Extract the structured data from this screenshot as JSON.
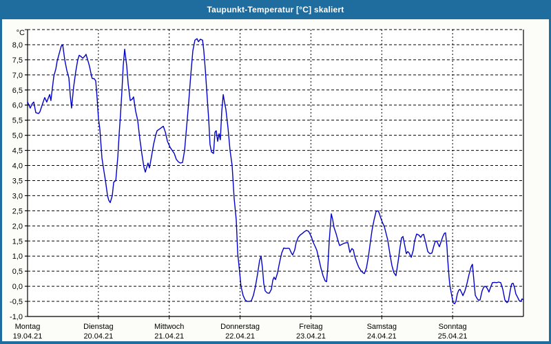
{
  "window": {
    "title": "Taupunkt-Temperatur [°C] skaliert"
  },
  "colors": {
    "titlebar": "#1f6c9f",
    "frame": "#1f6c9f",
    "page_bg": "#fcfdf8",
    "plot_bg": "#ffffff",
    "grid": "#000000",
    "text": "#000000",
    "line": "#0000c8"
  },
  "chart_data": {
    "type": "line",
    "title": "Taupunkt-Temperatur [°C] skaliert",
    "ylabel": "°C",
    "xlabel": "",
    "ylim": [
      -1.0,
      8.5
    ],
    "x_range_hours": [
      0,
      168
    ],
    "grid": true,
    "legend": "none",
    "y_grid_values": [
      8.5,
      8.0,
      7.5,
      7.0,
      6.5,
      6.0,
      5.5,
      5.0,
      4.5,
      4.0,
      3.5,
      3.0,
      2.5,
      2.0,
      1.5,
      1.0,
      0.5,
      0.0,
      -0.5
    ],
    "y_ticks": [
      {
        "v": 8.0,
        "label": "8,0"
      },
      {
        "v": 7.5,
        "label": "7,5"
      },
      {
        "v": 7.0,
        "label": "7,0"
      },
      {
        "v": 6.5,
        "label": "6,5"
      },
      {
        "v": 6.0,
        "label": "6,0"
      },
      {
        "v": 5.5,
        "label": "5,5"
      },
      {
        "v": 5.0,
        "label": "5,0"
      },
      {
        "v": 4.5,
        "label": "4,5"
      },
      {
        "v": 4.0,
        "label": "4,0"
      },
      {
        "v": 3.5,
        "label": "3,5"
      },
      {
        "v": 3.0,
        "label": "3,0"
      },
      {
        "v": 2.5,
        "label": "2,5"
      },
      {
        "v": 2.0,
        "label": "2,0"
      },
      {
        "v": 1.5,
        "label": "1,5"
      },
      {
        "v": 1.0,
        "label": "1,0"
      },
      {
        "v": 0.5,
        "label": "0,5"
      },
      {
        "v": 0.0,
        "label": "0,0"
      },
      {
        "v": -0.5,
        "label": "-0,5"
      },
      {
        "v": -1.0,
        "label": "-1,0"
      }
    ],
    "x_days": [
      {
        "name": "Montag",
        "date": "19.04.21"
      },
      {
        "name": "Dienstag",
        "date": "20.04.21"
      },
      {
        "name": "Mittwoch",
        "date": "21.04.21"
      },
      {
        "name": "Donnerstag",
        "date": "22.04.21"
      },
      {
        "name": "Freitag",
        "date": "23.04.21"
      },
      {
        "name": "Samstag",
        "date": "24.04.21"
      },
      {
        "name": "Sonntag",
        "date": "25.04.21"
      }
    ],
    "series_name": "Taupunkt-Temperatur",
    "points": [
      [
        0,
        6.1
      ],
      [
        0.9,
        5.9
      ],
      [
        1.6,
        6.05
      ],
      [
        2.1,
        6.1
      ],
      [
        2.8,
        5.75
      ],
      [
        3.7,
        5.72
      ],
      [
        4.2,
        5.78
      ],
      [
        5.1,
        6.05
      ],
      [
        5.8,
        6.25
      ],
      [
        6.5,
        6.1
      ],
      [
        7.5,
        6.35
      ],
      [
        7.9,
        6.15
      ],
      [
        8.9,
        6.95
      ],
      [
        9.6,
        7.2
      ],
      [
        10,
        7.45
      ],
      [
        10.7,
        7.7
      ],
      [
        11.4,
        7.95
      ],
      [
        11.9,
        8.0
      ],
      [
        12.6,
        7.5
      ],
      [
        13.3,
        7.15
      ],
      [
        14,
        6.9
      ],
      [
        14.5,
        6.3
      ],
      [
        14.9,
        5.9
      ],
      [
        15.6,
        6.6
      ],
      [
        16.3,
        7.1
      ],
      [
        17,
        7.5
      ],
      [
        17.5,
        7.65
      ],
      [
        18.2,
        7.6
      ],
      [
        18.7,
        7.55
      ],
      [
        19.4,
        7.62
      ],
      [
        19.8,
        7.68
      ],
      [
        20.5,
        7.45
      ],
      [
        21,
        7.28
      ],
      [
        21.7,
        6.95
      ],
      [
        21.9,
        6.88
      ],
      [
        22.6,
        6.87
      ],
      [
        23.1,
        6.8
      ],
      [
        23.6,
        6.2
      ],
      [
        24,
        5.57
      ],
      [
        24.5,
        5.2
      ],
      [
        25.2,
        4.25
      ],
      [
        25.9,
        3.8
      ],
      [
        26.4,
        3.5
      ],
      [
        27.1,
        3.0
      ],
      [
        27.5,
        2.85
      ],
      [
        28,
        2.77
      ],
      [
        28.7,
        3.0
      ],
      [
        29.2,
        3.45
      ],
      [
        29.9,
        3.5
      ],
      [
        30.6,
        4.3
      ],
      [
        31,
        5.0
      ],
      [
        31.5,
        5.7
      ],
      [
        32,
        6.5
      ],
      [
        32.4,
        7.3
      ],
      [
        32.9,
        7.85
      ],
      [
        33.6,
        7.3
      ],
      [
        34.1,
        6.7
      ],
      [
        34.8,
        6.15
      ],
      [
        35.5,
        6.2
      ],
      [
        35.9,
        6.27
      ],
      [
        36.6,
        5.8
      ],
      [
        37.3,
        5.5
      ],
      [
        38,
        4.9
      ],
      [
        38.7,
        4.4
      ],
      [
        39.4,
        3.95
      ],
      [
        39.9,
        3.78
      ],
      [
        40.4,
        3.95
      ],
      [
        40.8,
        4.08
      ],
      [
        41.3,
        3.92
      ],
      [
        42,
        4.3
      ],
      [
        42.7,
        4.7
      ],
      [
        43.4,
        5.0
      ],
      [
        43.9,
        5.15
      ],
      [
        44.6,
        5.2
      ],
      [
        45.3,
        5.25
      ],
      [
        46,
        5.3
      ],
      [
        46.7,
        5.1
      ],
      [
        47.4,
        4.8
      ],
      [
        48.3,
        4.6
      ],
      [
        49,
        4.5
      ],
      [
        49.7,
        4.4
      ],
      [
        50.4,
        4.2
      ],
      [
        51.1,
        4.12
      ],
      [
        51.8,
        4.08
      ],
      [
        52.5,
        4.1
      ],
      [
        53.2,
        4.5
      ],
      [
        53.9,
        5.3
      ],
      [
        54.6,
        6.1
      ],
      [
        55.3,
        7.0
      ],
      [
        56,
        7.8
      ],
      [
        56.7,
        8.15
      ],
      [
        57.4,
        8.2
      ],
      [
        57.9,
        8.1
      ],
      [
        58.6,
        8.18
      ],
      [
        59.3,
        8.15
      ],
      [
        59.7,
        7.8
      ],
      [
        60.2,
        7.2
      ],
      [
        60.9,
        6.2
      ],
      [
        61.4,
        5.5
      ],
      [
        61.8,
        4.7
      ],
      [
        62.3,
        4.45
      ],
      [
        63,
        4.4
      ],
      [
        63.5,
        5.1
      ],
      [
        63.9,
        5.15
      ],
      [
        64.4,
        4.8
      ],
      [
        64.9,
        5.05
      ],
      [
        65.3,
        4.85
      ],
      [
        65.8,
        5.8
      ],
      [
        66.3,
        6.35
      ],
      [
        66.7,
        6.1
      ],
      [
        67.2,
        5.85
      ],
      [
        67.9,
        5.25
      ],
      [
        68.6,
        4.5
      ],
      [
        69.3,
        4.0
      ],
      [
        70,
        2.9
      ],
      [
        70.7,
        2.2
      ],
      [
        71.2,
        1.1
      ],
      [
        71.6,
        0.7
      ],
      [
        72.3,
        0.0
      ],
      [
        73,
        -0.3
      ],
      [
        73.7,
        -0.45
      ],
      [
        74.4,
        -0.5
      ],
      [
        75.1,
        -0.5
      ],
      [
        75.8,
        -0.48
      ],
      [
        76.5,
        -0.3
      ],
      [
        77.2,
        0.0
      ],
      [
        77.9,
        0.4
      ],
      [
        78.6,
        0.85
      ],
      [
        79.1,
        1.0
      ],
      [
        79.6,
        0.6
      ],
      [
        80,
        0.1
      ],
      [
        80.5,
        -0.15
      ],
      [
        81.2,
        -0.22
      ],
      [
        81.9,
        -0.23
      ],
      [
        82.6,
        -0.1
      ],
      [
        83.1,
        0.2
      ],
      [
        83.5,
        0.3
      ],
      [
        84,
        0.22
      ],
      [
        84.7,
        0.45
      ],
      [
        85.4,
        0.8
      ],
      [
        86.1,
        1.1
      ],
      [
        86.8,
        1.27
      ],
      [
        87.5,
        1.25
      ],
      [
        88.2,
        1.26
      ],
      [
        88.7,
        1.25
      ],
      [
        89.4,
        1.1
      ],
      [
        89.8,
        1.04
      ],
      [
        90.5,
        1.2
      ],
      [
        91,
        1.45
      ],
      [
        91.7,
        1.62
      ],
      [
        92.4,
        1.7
      ],
      [
        93.1,
        1.75
      ],
      [
        93.8,
        1.81
      ],
      [
        94.5,
        1.85
      ],
      [
        95.2,
        1.82
      ],
      [
        96.1,
        1.65
      ],
      [
        96.8,
        1.45
      ],
      [
        97.5,
        1.3
      ],
      [
        98,
        1.19
      ],
      [
        98.7,
        0.9
      ],
      [
        99.4,
        0.6
      ],
      [
        100.1,
        0.35
      ],
      [
        100.8,
        0.18
      ],
      [
        101.3,
        0.15
      ],
      [
        101.7,
        0.6
      ],
      [
        102.2,
        1.5
      ],
      [
        102.9,
        2.4
      ],
      [
        103.4,
        2.2
      ],
      [
        103.8,
        1.95
      ],
      [
        104.5,
        1.75
      ],
      [
        105.2,
        1.5
      ],
      [
        105.7,
        1.35
      ],
      [
        106.4,
        1.38
      ],
      [
        107.1,
        1.42
      ],
      [
        107.8,
        1.44
      ],
      [
        108.5,
        1.45
      ],
      [
        109.2,
        1.12
      ],
      [
        109.9,
        1.25
      ],
      [
        110.4,
        1.2
      ],
      [
        110.8,
        1.0
      ],
      [
        111.5,
        0.8
      ],
      [
        112.2,
        0.63
      ],
      [
        112.9,
        0.52
      ],
      [
        113.6,
        0.45
      ],
      [
        114.1,
        0.42
      ],
      [
        114.8,
        0.6
      ],
      [
        115.5,
        1.0
      ],
      [
        116.2,
        1.5
      ],
      [
        116.7,
        1.85
      ],
      [
        117.4,
        2.2
      ],
      [
        118.1,
        2.48
      ],
      [
        118.8,
        2.5
      ],
      [
        119.2,
        2.4
      ],
      [
        119.7,
        2.25
      ],
      [
        120.2,
        2.12
      ],
      [
        120.9,
        1.97
      ],
      [
        121.6,
        1.7
      ],
      [
        122,
        1.54
      ],
      [
        122.7,
        1.1
      ],
      [
        123.4,
        0.7
      ],
      [
        124.1,
        0.45
      ],
      [
        124.8,
        0.35
      ],
      [
        125.5,
        0.8
      ],
      [
        126.2,
        1.3
      ],
      [
        126.7,
        1.6
      ],
      [
        127.2,
        1.65
      ],
      [
        127.9,
        1.3
      ],
      [
        128.3,
        1.08
      ],
      [
        128.8,
        1.15
      ],
      [
        129.3,
        1.1
      ],
      [
        130,
        0.96
      ],
      [
        130.7,
        1.2
      ],
      [
        131.1,
        1.5
      ],
      [
        131.8,
        1.73
      ],
      [
        132.5,
        1.7
      ],
      [
        133.2,
        1.62
      ],
      [
        133.7,
        1.7
      ],
      [
        134.2,
        1.72
      ],
      [
        134.9,
        1.45
      ],
      [
        135.6,
        1.15
      ],
      [
        136.3,
        1.08
      ],
      [
        137,
        1.1
      ],
      [
        137.7,
        1.35
      ],
      [
        138.1,
        1.48
      ],
      [
        138.6,
        1.5
      ],
      [
        139.1,
        1.4
      ],
      [
        139.5,
        1.31
      ],
      [
        140,
        1.45
      ],
      [
        140.7,
        1.65
      ],
      [
        141.2,
        1.75
      ],
      [
        141.6,
        1.77
      ],
      [
        142.1,
        1.3
      ],
      [
        142.3,
        0.92
      ],
      [
        142.8,
        0.3
      ],
      [
        143,
        0.08
      ],
      [
        143.5,
        -0.2
      ],
      [
        144,
        -0.45
      ],
      [
        144.2,
        -0.55
      ],
      [
        144.7,
        -0.58
      ],
      [
        145.1,
        -0.5
      ],
      [
        145.6,
        -0.25
      ],
      [
        146.1,
        -0.13
      ],
      [
        146.5,
        -0.1
      ],
      [
        147,
        -0.2
      ],
      [
        147.5,
        -0.31
      ],
      [
        148.2,
        -0.15
      ],
      [
        148.9,
        0.1
      ],
      [
        149.6,
        0.4
      ],
      [
        150.3,
        0.65
      ],
      [
        150.7,
        0.73
      ],
      [
        151.2,
        0.2
      ],
      [
        151.7,
        -0.3
      ],
      [
        152.4,
        -0.42
      ],
      [
        152.8,
        -0.46
      ],
      [
        153.3,
        -0.45
      ],
      [
        154,
        -0.15
      ],
      [
        154.5,
        -0.04
      ],
      [
        154.9,
        0.0
      ],
      [
        155.4,
        -0.02
      ],
      [
        155.9,
        -0.1
      ],
      [
        156.3,
        -0.19
      ],
      [
        156.8,
        -0.05
      ],
      [
        157.5,
        0.12
      ],
      [
        158.2,
        0.13
      ],
      [
        158.9,
        0.12
      ],
      [
        159.6,
        0.14
      ],
      [
        160.3,
        0.12
      ],
      [
        161,
        -0.1
      ],
      [
        161.7,
        -0.45
      ],
      [
        162.4,
        -0.54
      ],
      [
        162.9,
        -0.5
      ],
      [
        163.6,
        -0.1
      ],
      [
        164,
        0.08
      ],
      [
        164.5,
        0.1
      ],
      [
        165,
        -0.05
      ],
      [
        165.4,
        -0.25
      ],
      [
        166.1,
        -0.38
      ],
      [
        166.6,
        -0.48
      ],
      [
        167.1,
        -0.5
      ],
      [
        167.5,
        -0.42
      ],
      [
        168,
        -0.45
      ]
    ]
  }
}
